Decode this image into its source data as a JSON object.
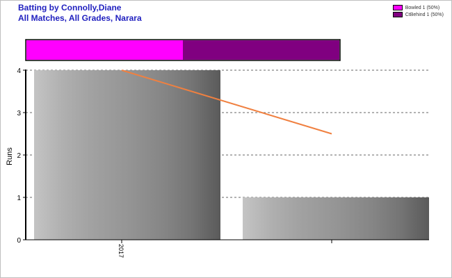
{
  "title_line1": "Batting by Connolly,Diane",
  "title_line2": "All Matches, All Grades, Narara",
  "legend": [
    {
      "label": "Bowled 1 (50%)",
      "color": "#ff00ff"
    },
    {
      "label": "CtBehind 1 (50%)",
      "color": "#800080"
    }
  ],
  "dismissals": [
    {
      "name": "Bowled",
      "count": 1,
      "fraction": 0.5,
      "color": "#ff00ff"
    },
    {
      "name": "CtBehind",
      "count": 1,
      "fraction": 0.5,
      "color": "#800080"
    }
  ],
  "chart_data": {
    "type": "bar",
    "ylabel": "Runs",
    "ylim": [
      0,
      4
    ],
    "yticks": [
      0,
      1,
      2,
      3,
      4
    ],
    "xtick_labels": [
      "2017",
      ""
    ],
    "values": [
      4,
      1
    ],
    "trend_line": {
      "start": 4,
      "end": 2.5,
      "color": "#f08040"
    },
    "grid": true
  }
}
